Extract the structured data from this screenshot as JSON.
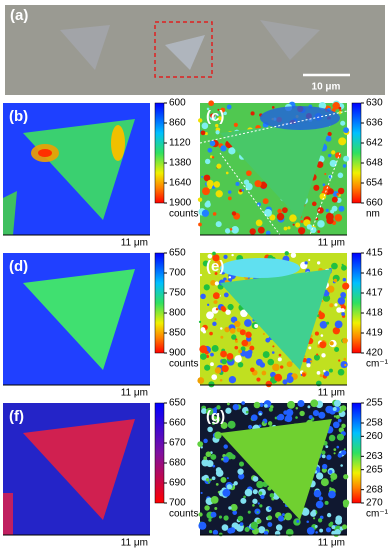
{
  "panels": [
    {
      "label": "(a)",
      "scale_bar": "10 μm"
    },
    {
      "label": "(b)",
      "scale_label": "11 μm",
      "colorbar": {
        "lim": [
          600,
          1900
        ],
        "ticks": [
          600,
          860,
          1120,
          1380,
          1640,
          1900
        ],
        "unit": "counts"
      }
    },
    {
      "label": "(c)",
      "scale_label": "11 μm",
      "colorbar": {
        "lim": [
          630,
          660
        ],
        "ticks": [
          630,
          636,
          642,
          648,
          654,
          660
        ],
        "unit": "nm"
      }
    },
    {
      "label": "(d)",
      "scale_label": "11 μm",
      "colorbar": {
        "lim": [
          650,
          900
        ],
        "ticks": [
          650,
          700,
          750,
          800,
          850,
          900
        ],
        "unit": "counts"
      }
    },
    {
      "label": "(e)",
      "scale_label": "11 μm",
      "colorbar": {
        "lim": [
          415,
          420
        ],
        "ticks": [
          415,
          416,
          417,
          418,
          419,
          420
        ],
        "unit": "cm⁻¹"
      }
    },
    {
      "label": "(f)",
      "scale_label": "11 μm",
      "colorbar": {
        "lim": [
          650,
          700
        ],
        "ticks": [
          650,
          660,
          670,
          680,
          690,
          700
        ],
        "unit": "counts"
      }
    },
    {
      "label": "(g)",
      "scale_label": "11 μm",
      "colorbar": {
        "lim": [
          255,
          270
        ],
        "ticks": [
          255,
          258,
          260,
          263,
          265,
          268,
          270
        ],
        "unit": "cm⁻¹"
      }
    }
  ]
}
